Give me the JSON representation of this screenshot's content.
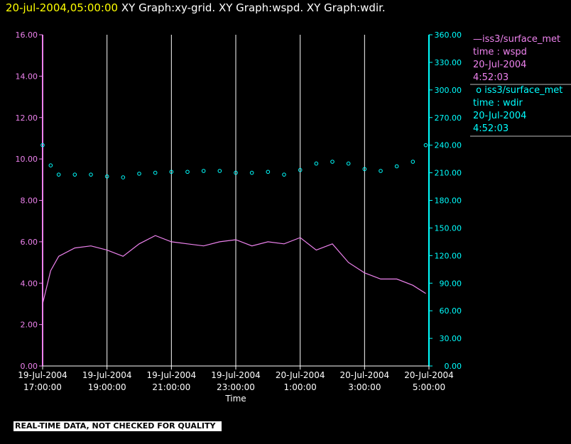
{
  "header": {
    "timestamp": "20-jul-2004,05:00:00",
    "titles": "XY Graph:xy-grid.  XY Graph:wspd.  XY Graph:wdir."
  },
  "legend": {
    "wspd": {
      "name": "iss3/surface_met",
      "line2": "time : wspd",
      "line3": "20-Jul-2004",
      "line4": "4:52:03"
    },
    "wdir": {
      "name": "iss3/surface_met",
      "line2": "time : wdir",
      "line3": "20-Jul-2004",
      "line4": "4:52:03"
    }
  },
  "footer": {
    "quality_note": "REAL-TIME DATA, NOT CHECKED FOR QUALITY"
  },
  "colors": {
    "wspd": "#ee82ee",
    "wdir": "#00ffff",
    "grid": "#ffffff",
    "timestamp": "#ffff00"
  },
  "chart_data": {
    "type": "line",
    "title": "",
    "xlabel": "Time",
    "x_ticks": [
      {
        "line1": "19-Jul-2004",
        "line2": "17:00:00"
      },
      {
        "line1": "19-Jul-2004",
        "line2": "19:00:00"
      },
      {
        "line1": "19-Jul-2004",
        "line2": "21:00:00"
      },
      {
        "line1": "19-Jul-2004",
        "line2": "23:00:00"
      },
      {
        "line1": "20-Jul-2004",
        "line2": "1:00:00"
      },
      {
        "line1": "20-Jul-2004",
        "line2": "3:00:00"
      },
      {
        "line1": "20-Jul-2004",
        "line2": "5:00:00"
      }
    ],
    "x_range": [
      "2004-07-19 17:00:00",
      "2004-07-20 05:00:00"
    ],
    "y_left": {
      "range": [
        0,
        16
      ],
      "ticks": [
        "0.00",
        "2.00",
        "4.00",
        "6.00",
        "8.00",
        "10.00",
        "12.00",
        "14.00",
        "16.00"
      ],
      "color": "#ee82ee"
    },
    "y_right": {
      "range": [
        0,
        360
      ],
      "ticks": [
        "0.00",
        "30.00",
        "60.00",
        "90.00",
        "120.00",
        "150.00",
        "180.00",
        "210.00",
        "240.00",
        "270.00",
        "300.00",
        "330.00",
        "360.00"
      ],
      "color": "#00ffff"
    },
    "grid": "vertical",
    "series": [
      {
        "name": "iss3/surface_met time : wspd",
        "axis": "left",
        "style": "line",
        "x_hours": [
          0,
          0.25,
          0.5,
          1,
          1.5,
          2,
          2.5,
          3,
          3.5,
          4,
          4.5,
          5,
          5.5,
          6,
          6.5,
          7,
          7.5,
          8,
          8.5,
          9,
          9.5,
          10,
          10.5,
          11,
          11.5,
          11.9
        ],
        "y": [
          3.0,
          4.6,
          5.3,
          5.7,
          5.8,
          5.6,
          5.3,
          5.9,
          6.3,
          6.0,
          5.9,
          5.8,
          6.0,
          6.1,
          5.8,
          6.0,
          5.9,
          6.2,
          5.6,
          5.9,
          5.0,
          4.5,
          4.2,
          4.2,
          3.9,
          3.5
        ]
      },
      {
        "name": "iss3/surface_met time : wdir",
        "axis": "right",
        "style": "scatter",
        "x_hours": [
          0,
          0.25,
          0.5,
          1,
          1.5,
          2,
          2.5,
          3,
          3.5,
          4,
          4.5,
          5,
          5.5,
          6,
          6.5,
          7,
          7.5,
          8,
          8.5,
          9,
          9.5,
          10,
          10.5,
          11,
          11.5,
          11.9
        ],
        "y": [
          240,
          218,
          208,
          208,
          208,
          206,
          205,
          209,
          210,
          211,
          211,
          212,
          212,
          210,
          210,
          211,
          208,
          213,
          220,
          222,
          220,
          214,
          212,
          217,
          222,
          240
        ]
      }
    ]
  }
}
